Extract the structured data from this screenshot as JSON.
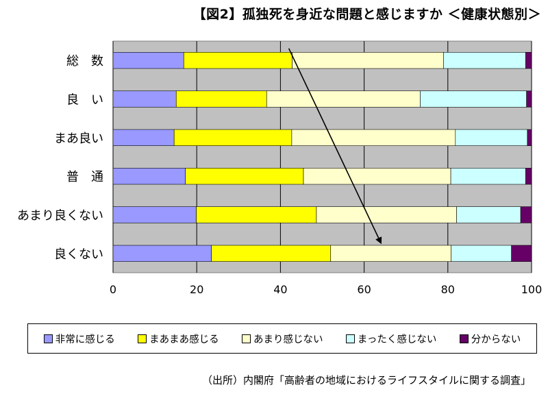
{
  "title": "【図2】孤独死を身近な問題と感じますか ＜健康状態別＞",
  "source": "（出所）内閣府「高齢者の地域におけるライフスタイルに関する調査」",
  "colors": {
    "background": "#ffffff",
    "plot_area": "#c0c0c0",
    "gridline": "#000000",
    "series": [
      "#9999ff",
      "#ffff00",
      "#ffffcc",
      "#ccffff",
      "#660066"
    ]
  },
  "chart_data": {
    "type": "bar",
    "orientation": "horizontal",
    "stacked": true,
    "categories": [
      "総　数",
      "良　い",
      "まあ良い",
      "普　通",
      "あまり良くない",
      "良くない"
    ],
    "series": [
      {
        "name": "非常に感じる",
        "values": [
          16.9,
          15.1,
          14.6,
          17.3,
          19.9,
          23.5
        ]
      },
      {
        "name": "まあまあ感じる",
        "values": [
          25.9,
          21.6,
          28.1,
          28.2,
          28.7,
          28.5
        ]
      },
      {
        "name": "あまり感じない",
        "values": [
          36.2,
          36.7,
          39.1,
          35.2,
          33.5,
          28.8
        ]
      },
      {
        "name": "まったく感じない",
        "values": [
          19.6,
          25.4,
          17.2,
          17.9,
          15.3,
          14.4
        ]
      },
      {
        "name": "分からない",
        "values": [
          1.4,
          1.2,
          1.0,
          1.4,
          2.6,
          4.8
        ]
      }
    ],
    "x_ticks": [
      "0",
      "20",
      "40",
      "60",
      "80",
      "100"
    ],
    "xlim": [
      0,
      100
    ],
    "grid": true,
    "legend_position": "bottom",
    "annotation": {
      "type": "arrow",
      "from": {
        "category_index": 0.4,
        "value": 42
      },
      "to": {
        "category_index": 5.05,
        "value": 64
      }
    }
  }
}
